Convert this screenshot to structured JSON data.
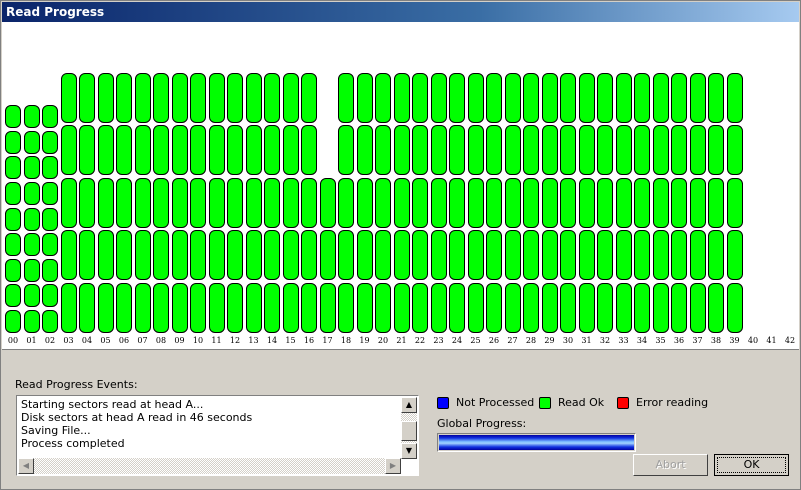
{
  "window": {
    "title": "Read Progress"
  },
  "tracks": [
    {
      "label": "00",
      "blocks": 9,
      "status": "read-ok"
    },
    {
      "label": "01",
      "blocks": 9,
      "status": "read-ok"
    },
    {
      "label": "02",
      "blocks": 9,
      "status": "read-ok"
    },
    {
      "label": "03",
      "blocks": 5,
      "status": "read-ok"
    },
    {
      "label": "04",
      "blocks": 5,
      "status": "read-ok"
    },
    {
      "label": "05",
      "blocks": 5,
      "status": "read-ok"
    },
    {
      "label": "06",
      "blocks": 5,
      "status": "read-ok"
    },
    {
      "label": "07",
      "blocks": 5,
      "status": "read-ok"
    },
    {
      "label": "08",
      "blocks": 5,
      "status": "read-ok"
    },
    {
      "label": "09",
      "blocks": 5,
      "status": "read-ok"
    },
    {
      "label": "10",
      "blocks": 5,
      "status": "read-ok"
    },
    {
      "label": "11",
      "blocks": 5,
      "status": "read-ok"
    },
    {
      "label": "12",
      "blocks": 5,
      "status": "read-ok"
    },
    {
      "label": "13",
      "blocks": 5,
      "status": "read-ok"
    },
    {
      "label": "14",
      "blocks": 5,
      "status": "read-ok"
    },
    {
      "label": "15",
      "blocks": 5,
      "status": "read-ok"
    },
    {
      "label": "16",
      "blocks": 5,
      "status": "read-ok"
    },
    {
      "label": "17",
      "blocks": 3,
      "status": "read-ok"
    },
    {
      "label": "18",
      "blocks": 5,
      "status": "read-ok"
    },
    {
      "label": "19",
      "blocks": 5,
      "status": "read-ok"
    },
    {
      "label": "20",
      "blocks": 5,
      "status": "read-ok"
    },
    {
      "label": "21",
      "blocks": 5,
      "status": "read-ok"
    },
    {
      "label": "22",
      "blocks": 5,
      "status": "read-ok"
    },
    {
      "label": "23",
      "blocks": 5,
      "status": "read-ok"
    },
    {
      "label": "24",
      "blocks": 5,
      "status": "read-ok"
    },
    {
      "label": "25",
      "blocks": 5,
      "status": "read-ok"
    },
    {
      "label": "26",
      "blocks": 5,
      "status": "read-ok"
    },
    {
      "label": "27",
      "blocks": 5,
      "status": "read-ok"
    },
    {
      "label": "28",
      "blocks": 5,
      "status": "read-ok"
    },
    {
      "label": "29",
      "blocks": 5,
      "status": "read-ok"
    },
    {
      "label": "30",
      "blocks": 5,
      "status": "read-ok"
    },
    {
      "label": "31",
      "blocks": 5,
      "status": "read-ok"
    },
    {
      "label": "32",
      "blocks": 5,
      "status": "read-ok"
    },
    {
      "label": "33",
      "blocks": 5,
      "status": "read-ok"
    },
    {
      "label": "34",
      "blocks": 5,
      "status": "read-ok"
    },
    {
      "label": "35",
      "blocks": 5,
      "status": "read-ok"
    },
    {
      "label": "36",
      "blocks": 5,
      "status": "read-ok"
    },
    {
      "label": "37",
      "blocks": 5,
      "status": "read-ok"
    },
    {
      "label": "38",
      "blocks": 5,
      "status": "read-ok"
    },
    {
      "label": "39",
      "blocks": 5,
      "status": "read-ok"
    },
    {
      "label": "40",
      "blocks": 0,
      "status": "none"
    },
    {
      "label": "41",
      "blocks": 0,
      "status": "none"
    },
    {
      "label": "42",
      "blocks": 0,
      "status": "none"
    }
  ],
  "events": {
    "label": "Read Progress Events:",
    "lines": [
      "Starting sectors read at head A...",
      "Disk sectors at head A read in 46 seconds",
      "Saving File...",
      "Process completed"
    ]
  },
  "legend": [
    {
      "label": "Not Processed",
      "color": "#0000ff"
    },
    {
      "label": "Read Ok",
      "color": "#00ff00"
    },
    {
      "label": "Error reading",
      "color": "#ff0000"
    }
  ],
  "progress": {
    "label": "Global Progress:",
    "percent": 100
  },
  "buttons": {
    "abort": "Abort",
    "ok": "OK"
  }
}
